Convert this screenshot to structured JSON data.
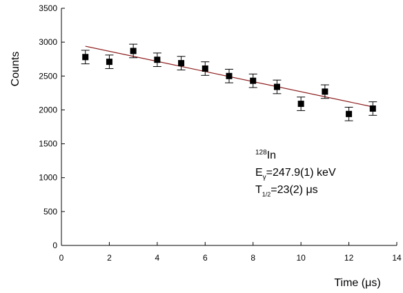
{
  "chart_data": {
    "type": "scatter",
    "x_label": "Time (μs)",
    "y_label": "Counts",
    "x": [
      1,
      2,
      3,
      4,
      5,
      6,
      7,
      8,
      9,
      10,
      11,
      12,
      13
    ],
    "series": [
      {
        "color": "#000000",
        "values": [
          2780,
          2710,
          2870,
          2740,
          2690,
          2610,
          2500,
          2430,
          2340,
          2090,
          2270,
          1940,
          2020
        ],
        "errors": [
          100,
          100,
          100,
          100,
          100,
          100,
          100,
          100,
          100,
          100,
          100,
          100,
          100
        ]
      }
    ],
    "fit": {
      "x": [
        1,
        13
      ],
      "values": [
        2940,
        2045
      ],
      "color": "#8b1a1a"
    },
    "annotations": [
      [
        "128",
        "In"
      ],
      [
        "E",
        "γ",
        "=247.9(1) keV"
      ],
      [
        "T",
        "1/2",
        "=23(2) μs"
      ]
    ],
    "xlim": [
      0,
      14
    ],
    "ylim": [
      0,
      3500
    ],
    "xticks": [
      0,
      2,
      4,
      6,
      8,
      10,
      12,
      14
    ],
    "yticks": [
      0,
      500,
      1000,
      1500,
      2000,
      2500,
      3000,
      3500
    ],
    "grid": false
  }
}
